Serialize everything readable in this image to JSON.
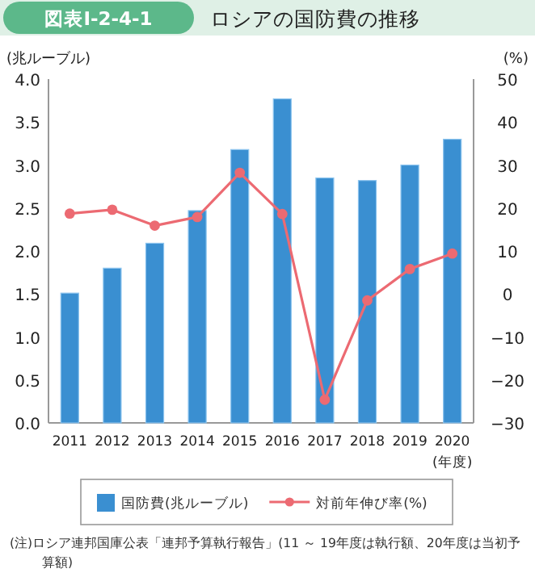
{
  "chart_data": {
    "type": "bar",
    "title": "ロシアの国防費の推移",
    "xlabel": "(年度)",
    "ylabel": "(兆ルーブル)",
    "y2label": "(%)",
    "categories": [
      "2011",
      "2012",
      "2013",
      "2014",
      "2015",
      "2016",
      "2017",
      "2018",
      "2019",
      "2020"
    ],
    "series": [
      {
        "name": "国防費(兆ルーブル)",
        "color": "#3a8fd1",
        "values": [
          1.51,
          1.8,
          2.09,
          2.47,
          3.18,
          3.77,
          2.85,
          2.82,
          3.0,
          3.3
        ]
      },
      {
        "name": "対前年伸び率(%)",
        "type": "line",
        "axis": "y2",
        "color": "#ec6a72",
        "marker": "circle",
        "values": [
          18.7,
          19.6,
          15.9,
          17.9,
          28.2,
          18.6,
          -24.6,
          -1.5,
          5.8,
          9.4
        ]
      }
    ],
    "ylim": [
      0,
      4
    ],
    "yticks": [
      {
        "value": 0,
        "label": "0.0"
      },
      {
        "value": 0.5,
        "label": "0.5"
      },
      {
        "value": 1,
        "label": "1.0"
      },
      {
        "value": 1.5,
        "label": "1.5"
      },
      {
        "value": 2,
        "label": "2.0"
      },
      {
        "value": 2.5,
        "label": "2.5"
      },
      {
        "value": 3,
        "label": "3.0"
      },
      {
        "value": 3.5,
        "label": "3.5"
      },
      {
        "value": 4,
        "label": "4.0"
      }
    ],
    "y2lim": [
      -30,
      50
    ],
    "y2ticks": [
      {
        "value": -30,
        "label": "−30"
      },
      {
        "value": -20,
        "label": "−20"
      },
      {
        "value": -10,
        "label": "−10"
      },
      0,
      10,
      20,
      30,
      40,
      50
    ],
    "legend": "bottom",
    "annotations": [
      "図表Ⅰ-2-4-1",
      "(注)ロシア連邦国庫公表「連邦予算執行報告」(11 ～ 19年度は執行額、20年度は当初予算額)"
    ]
  }
}
